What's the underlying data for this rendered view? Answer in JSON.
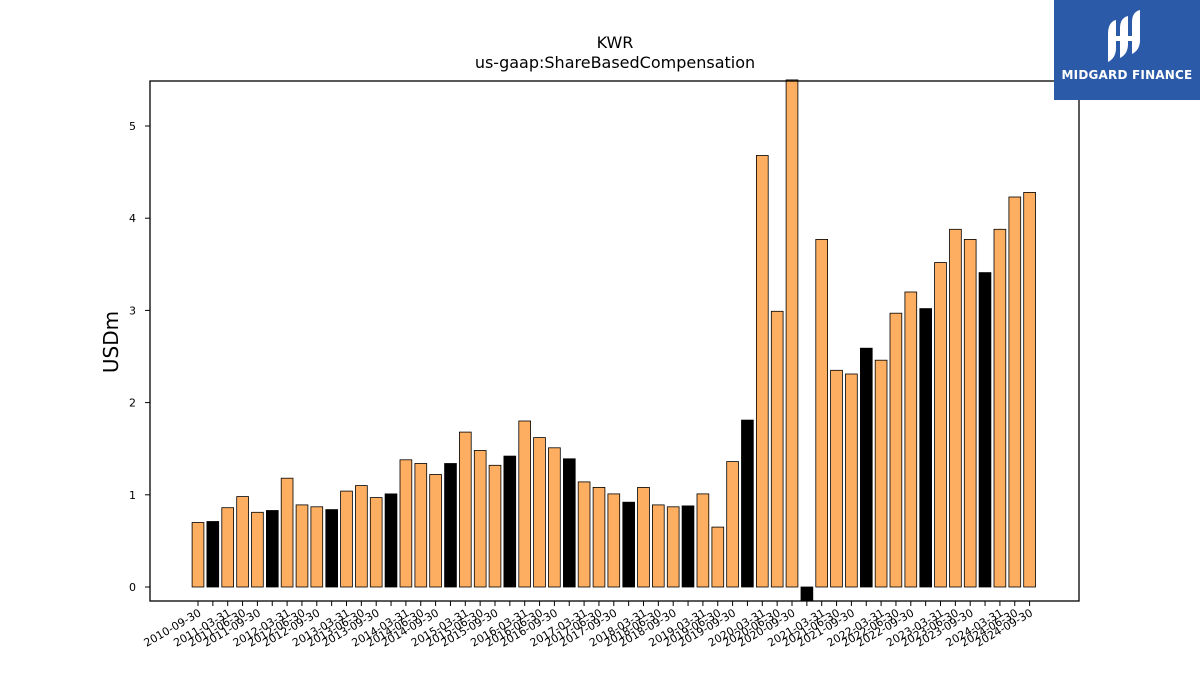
{
  "chart_data": {
    "type": "bar",
    "title": "KWR",
    "subtitle": "us-gaap:ShareBasedCompensation",
    "xlabel": "",
    "ylabel": "USDm",
    "ylim": [
      -0.15,
      5.5
    ],
    "yticks": [
      0,
      1,
      2,
      3,
      4,
      5
    ],
    "grid": false,
    "colors": {
      "normal": "#fdae61",
      "highlight": "#000000",
      "edge": "#000000"
    },
    "categories": [
      "2010-09-30",
      "2010-12-31",
      "2011-03-31",
      "2011-06-30",
      "2011-09-30",
      "2011-12-31",
      "2012-03-31",
      "2012-06-30",
      "2012-09-30",
      "2012-12-31",
      "2013-03-31",
      "2013-06-30",
      "2013-09-30",
      "2013-12-31",
      "2014-03-31",
      "2014-06-30",
      "2014-09-30",
      "2014-12-31",
      "2015-03-31",
      "2015-06-30",
      "2015-09-30",
      "2015-12-31",
      "2016-03-31",
      "2016-06-30",
      "2016-09-30",
      "2016-12-31",
      "2017-03-31",
      "2017-06-30",
      "2017-09-30",
      "2017-12-31",
      "2018-03-31",
      "2018-06-30",
      "2018-09-30",
      "2018-12-31",
      "2019-03-31",
      "2019-06-30",
      "2019-09-30",
      "2019-12-31",
      "2020-03-31",
      "2020-06-30",
      "2020-09-30",
      "2020-12-31",
      "2021-03-31",
      "2021-06-30",
      "2021-09-30",
      "2021-12-31",
      "2022-03-31",
      "2022-06-30",
      "2022-09-30",
      "2022-12-31",
      "2023-03-31",
      "2023-06-30",
      "2023-09-30",
      "2023-12-31",
      "2024-03-31",
      "2024-06-30",
      "2024-09-30"
    ],
    "x_tick_labels": [
      "2010-09-30",
      "2011-03-31",
      "2011-06-30",
      "2011-09-30",
      "2012-03-31",
      "2012-06-30",
      "2012-09-30",
      "2013-03-31",
      "2013-06-30",
      "2013-09-30",
      "2014-03-31",
      "2014-06-30",
      "2014-09-30",
      "2015-03-31",
      "2015-06-30",
      "2015-09-30",
      "2016-03-31",
      "2016-06-30",
      "2016-09-30",
      "2017-03-31",
      "2017-06-30",
      "2017-09-30",
      "2018-03-31",
      "2018-06-30",
      "2018-09-30",
      "2019-03-31",
      "2019-06-30",
      "2019-09-30",
      "2020-03-31",
      "2020-06-30",
      "2020-09-30",
      "2021-03-31",
      "2021-06-30",
      "2021-09-30",
      "2022-03-31",
      "2022-06-30",
      "2022-09-30",
      "2023-03-31",
      "2023-06-30",
      "2023-09-30",
      "2024-03-31",
      "2024-06-30",
      "2024-09-30"
    ],
    "values": [
      0.7,
      0.71,
      0.86,
      0.98,
      0.81,
      0.83,
      1.18,
      0.89,
      0.87,
      0.84,
      1.04,
      1.1,
      0.97,
      1.01,
      1.38,
      1.34,
      1.22,
      1.34,
      1.68,
      1.48,
      1.32,
      1.42,
      1.8,
      1.62,
      1.51,
      1.39,
      1.14,
      1.08,
      1.01,
      0.92,
      1.08,
      0.89,
      0.87,
      0.88,
      1.01,
      0.65,
      1.36,
      1.81,
      4.68,
      2.99,
      5.5,
      -0.15,
      3.77,
      2.35,
      2.31,
      2.59,
      2.46,
      2.97,
      3.2,
      3.02,
      3.52,
      3.88,
      3.77,
      3.41,
      3.88,
      4.23,
      4.28
    ],
    "highlight": [
      false,
      true,
      false,
      false,
      false,
      true,
      false,
      false,
      false,
      true,
      false,
      false,
      false,
      true,
      false,
      false,
      false,
      true,
      false,
      false,
      false,
      true,
      false,
      false,
      false,
      true,
      false,
      false,
      false,
      true,
      false,
      false,
      false,
      true,
      false,
      false,
      false,
      true,
      false,
      false,
      false,
      true,
      false,
      false,
      false,
      true,
      false,
      false,
      false,
      true,
      false,
      false,
      false,
      true,
      false,
      false,
      false
    ]
  },
  "logo": {
    "text": "MIDGARD FINANCE",
    "color": "#2a5aa8"
  }
}
